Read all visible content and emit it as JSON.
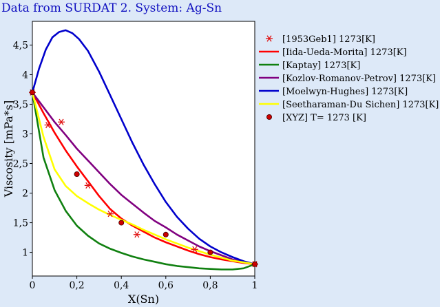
{
  "chart_data": {
    "type": "line",
    "title": "Data from SURDAT 2. System: Ag-Sn",
    "xlabel": "X(Sn)",
    "ylabel": "Viscosity [mPa*s]",
    "xlim": [
      0,
      1
    ],
    "ylim": [
      0.6,
      4.9
    ],
    "xticks": [
      0,
      0.2,
      0.4,
      0.6,
      0.8,
      1
    ],
    "xtick_labels": [
      "0",
      "0,2",
      "0,4",
      "0,6",
      "0,8",
      "1"
    ],
    "yticks": [
      1,
      1.5,
      2,
      2.5,
      3,
      3.5,
      4,
      4.5
    ],
    "ytick_labels": [
      "1",
      "1,5",
      "2",
      "2,5",
      "3",
      "3,5",
      "4",
      "4,5"
    ],
    "legend_position": "right",
    "series": [
      {
        "name": "[1953Geb1] 1273[K]",
        "kind": "scatter",
        "marker": "asterisk",
        "color": "#e01010",
        "x": [
          0,
          0.07,
          0.13,
          0.25,
          0.35,
          0.47,
          0.73,
          1.0
        ],
        "y": [
          3.7,
          3.15,
          3.2,
          2.13,
          1.65,
          1.3,
          1.05,
          0.8
        ]
      },
      {
        "name": "[Iida-Ueda-Morita] 1273[K]",
        "kind": "line",
        "color": "#ff0000",
        "x": [
          0,
          0.05,
          0.1,
          0.15,
          0.2,
          0.25,
          0.3,
          0.35,
          0.4,
          0.45,
          0.5,
          0.55,
          0.6,
          0.65,
          0.7,
          0.75,
          0.8,
          0.85,
          0.9,
          0.95,
          1.0
        ],
        "y": [
          3.7,
          3.35,
          3.02,
          2.72,
          2.45,
          2.2,
          1.95,
          1.73,
          1.57,
          1.45,
          1.35,
          1.25,
          1.17,
          1.1,
          1.03,
          0.97,
          0.92,
          0.88,
          0.85,
          0.82,
          0.8
        ]
      },
      {
        "name": "[Kaptay] 1273[K]",
        "kind": "line",
        "color": "#108010",
        "x": [
          0,
          0.05,
          0.1,
          0.15,
          0.2,
          0.25,
          0.3,
          0.35,
          0.4,
          0.45,
          0.5,
          0.55,
          0.6,
          0.65,
          0.7,
          0.75,
          0.8,
          0.85,
          0.9,
          0.95,
          1.0
        ],
        "y": [
          3.7,
          2.6,
          2.05,
          1.7,
          1.45,
          1.28,
          1.15,
          1.06,
          0.99,
          0.93,
          0.88,
          0.84,
          0.8,
          0.77,
          0.75,
          0.73,
          0.72,
          0.71,
          0.71,
          0.73,
          0.8
        ]
      },
      {
        "name": "[Kozlov-Romanov-Petrov] 1273[K]",
        "kind": "line",
        "color": "#800080",
        "x": [
          0,
          0.05,
          0.1,
          0.15,
          0.2,
          0.25,
          0.3,
          0.35,
          0.4,
          0.45,
          0.5,
          0.55,
          0.6,
          0.65,
          0.7,
          0.75,
          0.8,
          0.85,
          0.9,
          0.95,
          1.0
        ],
        "y": [
          3.7,
          3.45,
          3.2,
          2.98,
          2.75,
          2.55,
          2.35,
          2.15,
          1.97,
          1.82,
          1.67,
          1.53,
          1.42,
          1.3,
          1.2,
          1.1,
          1.02,
          0.95,
          0.88,
          0.83,
          0.8
        ]
      },
      {
        "name": "[Moelwyn-Hughes] 1273[K]",
        "kind": "line",
        "color": "#0000cc",
        "x": [
          0,
          0.03,
          0.06,
          0.09,
          0.12,
          0.15,
          0.18,
          0.21,
          0.25,
          0.3,
          0.35,
          0.4,
          0.45,
          0.5,
          0.55,
          0.6,
          0.65,
          0.7,
          0.75,
          0.8,
          0.85,
          0.9,
          0.95,
          1.0
        ],
        "y": [
          3.7,
          4.1,
          4.42,
          4.63,
          4.72,
          4.75,
          4.7,
          4.6,
          4.4,
          4.05,
          3.65,
          3.25,
          2.85,
          2.48,
          2.15,
          1.85,
          1.6,
          1.4,
          1.23,
          1.1,
          1.0,
          0.92,
          0.85,
          0.8
        ]
      },
      {
        "name": "[Seetharaman-Du Sichen] 1273[K]",
        "kind": "line",
        "color": "#ffff00",
        "x": [
          0,
          0.05,
          0.1,
          0.15,
          0.2,
          0.25,
          0.3,
          0.35,
          0.4,
          0.45,
          0.5,
          0.55,
          0.6,
          0.65,
          0.7,
          0.75,
          0.8,
          0.85,
          0.9,
          0.95,
          1.0
        ],
        "y": [
          3.7,
          2.95,
          2.4,
          2.12,
          1.95,
          1.83,
          1.72,
          1.63,
          1.55,
          1.47,
          1.38,
          1.3,
          1.22,
          1.15,
          1.08,
          1.02,
          0.96,
          0.91,
          0.86,
          0.83,
          0.8
        ]
      },
      {
        "name": "[XYZ] T= 1273 [K]",
        "kind": "scatter",
        "marker": "dot",
        "color": "#cc0000",
        "x": [
          0,
          0.2,
          0.4,
          0.6,
          0.8,
          1.0
        ],
        "y": [
          3.7,
          2.32,
          1.5,
          1.3,
          1.0,
          0.8
        ]
      }
    ]
  }
}
